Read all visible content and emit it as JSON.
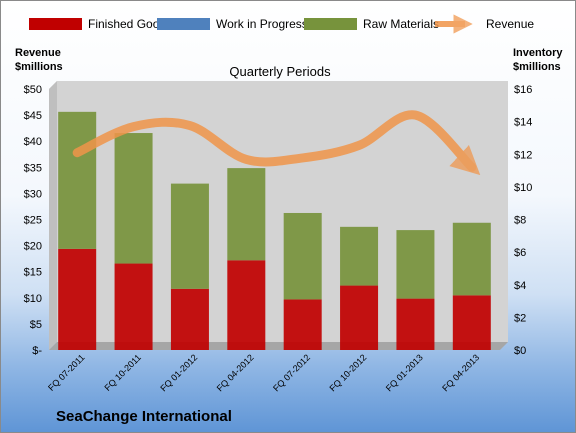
{
  "chart_data": {
    "type": "bar",
    "subtitle": "Quarterly Periods",
    "company": "SeaChange International",
    "ylabel_left": [
      "Revenue",
      "$millions"
    ],
    "ylabel_right": [
      "Inventory",
      "$millions"
    ],
    "categories": [
      "FQ 07-2011",
      "FQ 10-2011",
      "FQ 01-2012",
      "FQ 04-2012",
      "FQ 07-2012",
      "FQ 10-2012",
      "FQ 01-2013",
      "FQ 04-2013"
    ],
    "series": [
      {
        "name": "Finished Goods",
        "color": "#c00000",
        "axis": "right",
        "stack": true,
        "values": [
          6.2,
          5.3,
          3.75,
          5.5,
          3.1,
          3.95,
          3.15,
          3.35
        ]
      },
      {
        "name": "Work in Progress",
        "color": "#4f81bd",
        "axis": "right",
        "stack": true,
        "values": [
          0,
          0,
          0,
          0,
          0,
          0,
          0,
          0
        ]
      },
      {
        "name": "Raw Materials",
        "color": "#77933c",
        "axis": "right",
        "stack": true,
        "values": [
          8.4,
          8.0,
          6.45,
          5.65,
          5.3,
          3.6,
          4.2,
          4.45
        ]
      },
      {
        "name": "Revenue",
        "color": "#e46c0a",
        "axis": "left",
        "type": "line",
        "values": [
          37.8,
          42.8,
          43.0,
          36.5,
          36.8,
          39.2,
          45.0,
          35.0
        ]
      }
    ],
    "ylim_left": [
      0,
      50
    ],
    "yticks_left": [
      "$-",
      "$5",
      "$10",
      "$15",
      "$20",
      "$25",
      "$30",
      "$35",
      "$40",
      "$45",
      "$50"
    ],
    "ylim_right": [
      0,
      16
    ],
    "yticks_right": [
      "$0",
      "$2",
      "$4",
      "$6",
      "$8",
      "$10",
      "$12",
      "$14",
      "$16"
    ],
    "legend_position": "top",
    "grid": false
  }
}
